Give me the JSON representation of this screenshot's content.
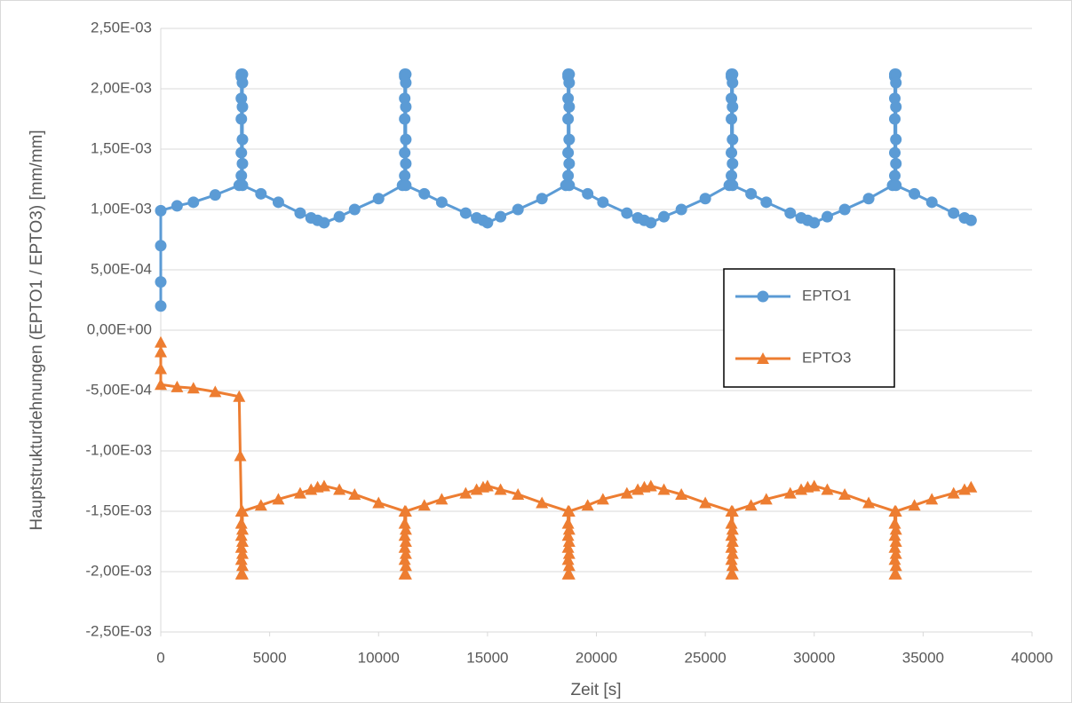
{
  "chart_data": {
    "type": "scatter",
    "x_label": "Zeit [s]",
    "y_label": "Hauptstrukturdehnungen (EPTO1 / EPTO3) [mm/mm]",
    "xlim": [
      0,
      40000
    ],
    "xticks": [
      0,
      5000,
      10000,
      15000,
      20000,
      25000,
      30000,
      35000,
      40000
    ],
    "ylim": [
      -0.0025,
      0.0025
    ],
    "yticks": [
      {
        "value": -0.0025,
        "label": "-2,50E-03"
      },
      {
        "value": -0.002,
        "label": "-2,00E-03"
      },
      {
        "value": -0.0015,
        "label": "-1,50E-03"
      },
      {
        "value": -0.001,
        "label": "-1,00E-03"
      },
      {
        "value": -0.0005,
        "label": "-5,00E-04"
      },
      {
        "value": 0,
        "label": "0,00E+00"
      },
      {
        "value": 0.0005,
        "label": "5,00E-04"
      },
      {
        "value": 0.001,
        "label": "1,00E-03"
      },
      {
        "value": 0.0015,
        "label": "1,50E-03"
      },
      {
        "value": 0.002,
        "label": "2,00E-03"
      },
      {
        "value": 0.0025,
        "label": "2,50E-03"
      }
    ],
    "grid": true,
    "legend": "right",
    "series": [
      {
        "name": "EPTO1",
        "color": "#5b9bd5",
        "marker": "circle",
        "x": [
          0,
          0,
          0,
          0,
          750,
          1500,
          2500,
          3600,
          3700,
          3700,
          3700,
          3700,
          3700,
          3700,
          3750,
          3750,
          3750,
          3750,
          3750,
          3750,
          4600,
          5400,
          6400,
          6900,
          7200,
          7500,
          8200,
          8900,
          10000,
          11100,
          11200,
          11200,
          11200,
          11200,
          11200,
          11200,
          11250,
          11250,
          11250,
          11250,
          11250,
          11250,
          12100,
          12900,
          14000,
          14500,
          14800,
          15000,
          15600,
          16400,
          17500,
          18600,
          18700,
          18700,
          18700,
          18700,
          18700,
          18700,
          18750,
          18750,
          18750,
          18750,
          18750,
          18750,
          19600,
          20300,
          21400,
          21900,
          22200,
          22500,
          23100,
          23900,
          25000,
          26100,
          26200,
          26200,
          26200,
          26200,
          26200,
          26200,
          26250,
          26250,
          26250,
          26250,
          26250,
          26250,
          27100,
          27800,
          28900,
          29400,
          29700,
          30000,
          30600,
          31400,
          32500,
          33600,
          33700,
          33700,
          33700,
          33700,
          33700,
          33700,
          33750,
          33750,
          33750,
          33750,
          33750,
          33750,
          34600,
          35400,
          36400,
          36900,
          37200
        ],
        "values": [
          0.0002,
          0.0004,
          0.0007,
          0.00099,
          0.00103,
          0.00106,
          0.00112,
          0.0012,
          0.00128,
          0.00147,
          0.00175,
          0.00192,
          0.0021,
          0.00212,
          0.00212,
          0.00205,
          0.00185,
          0.00158,
          0.00138,
          0.0012,
          0.00113,
          0.00106,
          0.00097,
          0.00093,
          0.00091,
          0.00089,
          0.00094,
          0.001,
          0.00109,
          0.0012,
          0.00128,
          0.00147,
          0.00175,
          0.00192,
          0.0021,
          0.00212,
          0.00212,
          0.00205,
          0.00185,
          0.00158,
          0.00138,
          0.0012,
          0.00113,
          0.00106,
          0.00097,
          0.00093,
          0.00091,
          0.00089,
          0.00094,
          0.001,
          0.00109,
          0.0012,
          0.00128,
          0.00147,
          0.00175,
          0.00192,
          0.0021,
          0.00212,
          0.00212,
          0.00205,
          0.00185,
          0.00158,
          0.00138,
          0.0012,
          0.00113,
          0.00106,
          0.00097,
          0.00093,
          0.00091,
          0.00089,
          0.00094,
          0.001,
          0.00109,
          0.0012,
          0.00128,
          0.00147,
          0.00175,
          0.00192,
          0.0021,
          0.00212,
          0.00212,
          0.00205,
          0.00185,
          0.00158,
          0.00138,
          0.0012,
          0.00113,
          0.00106,
          0.00097,
          0.00093,
          0.00091,
          0.00089,
          0.00094,
          0.001,
          0.00109,
          0.0012,
          0.00128,
          0.00147,
          0.00175,
          0.00192,
          0.0021,
          0.00212,
          0.00212,
          0.00205,
          0.00185,
          0.00158,
          0.00138,
          0.0012,
          0.00113,
          0.00106,
          0.00097,
          0.00093,
          0.00091
        ]
      },
      {
        "name": "EPTO3",
        "color": "#ed7d31",
        "marker": "triangle",
        "x": [
          0,
          0,
          0,
          0,
          750,
          1500,
          2500,
          3600,
          3650,
          3700,
          3700,
          3700,
          3700,
          3700,
          3700,
          3750,
          3750,
          3750,
          3750,
          3750,
          3750,
          4600,
          5400,
          6400,
          6900,
          7200,
          7500,
          8200,
          8900,
          10000,
          11200,
          11200,
          11200,
          11200,
          11200,
          11200,
          11250,
          11250,
          11250,
          11250,
          11250,
          11250,
          12100,
          12900,
          14000,
          14500,
          14800,
          15000,
          15600,
          16400,
          17500,
          18700,
          18700,
          18700,
          18700,
          18700,
          18700,
          18750,
          18750,
          18750,
          18750,
          18750,
          18750,
          19600,
          20300,
          21400,
          21900,
          22200,
          22500,
          23100,
          23900,
          25000,
          26200,
          26200,
          26200,
          26200,
          26200,
          26200,
          26250,
          26250,
          26250,
          26250,
          26250,
          26250,
          27100,
          27800,
          28900,
          29400,
          29700,
          30000,
          30600,
          31400,
          32500,
          33700,
          33700,
          33700,
          33700,
          33700,
          33700,
          33750,
          33750,
          33750,
          33750,
          33750,
          33750,
          34600,
          35400,
          36400,
          36900,
          37200
        ],
        "values": [
          -0.0001,
          -0.00018,
          -0.00032,
          -0.00045,
          -0.00047,
          -0.00048,
          -0.00051,
          -0.00055,
          -0.00104,
          -0.0015,
          -0.0016,
          -0.0017,
          -0.0018,
          -0.0019,
          -0.00202,
          -0.00202,
          -0.00195,
          -0.00185,
          -0.00175,
          -0.00165,
          -0.0015,
          -0.00145,
          -0.0014,
          -0.00135,
          -0.00132,
          -0.0013,
          -0.00129,
          -0.00132,
          -0.00136,
          -0.00143,
          -0.0015,
          -0.0016,
          -0.0017,
          -0.0018,
          -0.0019,
          -0.00202,
          -0.00202,
          -0.00195,
          -0.00185,
          -0.00175,
          -0.00165,
          -0.0015,
          -0.00145,
          -0.0014,
          -0.00135,
          -0.00132,
          -0.0013,
          -0.00129,
          -0.00132,
          -0.00136,
          -0.00143,
          -0.0015,
          -0.0016,
          -0.0017,
          -0.0018,
          -0.0019,
          -0.00202,
          -0.00202,
          -0.00195,
          -0.00185,
          -0.00175,
          -0.00165,
          -0.0015,
          -0.00145,
          -0.0014,
          -0.00135,
          -0.00132,
          -0.0013,
          -0.00129,
          -0.00132,
          -0.00136,
          -0.00143,
          -0.0015,
          -0.0016,
          -0.0017,
          -0.0018,
          -0.0019,
          -0.00202,
          -0.00202,
          -0.00195,
          -0.00185,
          -0.00175,
          -0.00165,
          -0.0015,
          -0.00145,
          -0.0014,
          -0.00135,
          -0.00132,
          -0.0013,
          -0.00129,
          -0.00132,
          -0.00136,
          -0.00143,
          -0.0015,
          -0.0016,
          -0.0017,
          -0.0018,
          -0.0019,
          -0.00202,
          -0.00202,
          -0.00195,
          -0.00185,
          -0.00175,
          -0.00165,
          -0.0015,
          -0.00145,
          -0.0014,
          -0.00135,
          -0.00132,
          -0.0013
        ]
      }
    ]
  }
}
